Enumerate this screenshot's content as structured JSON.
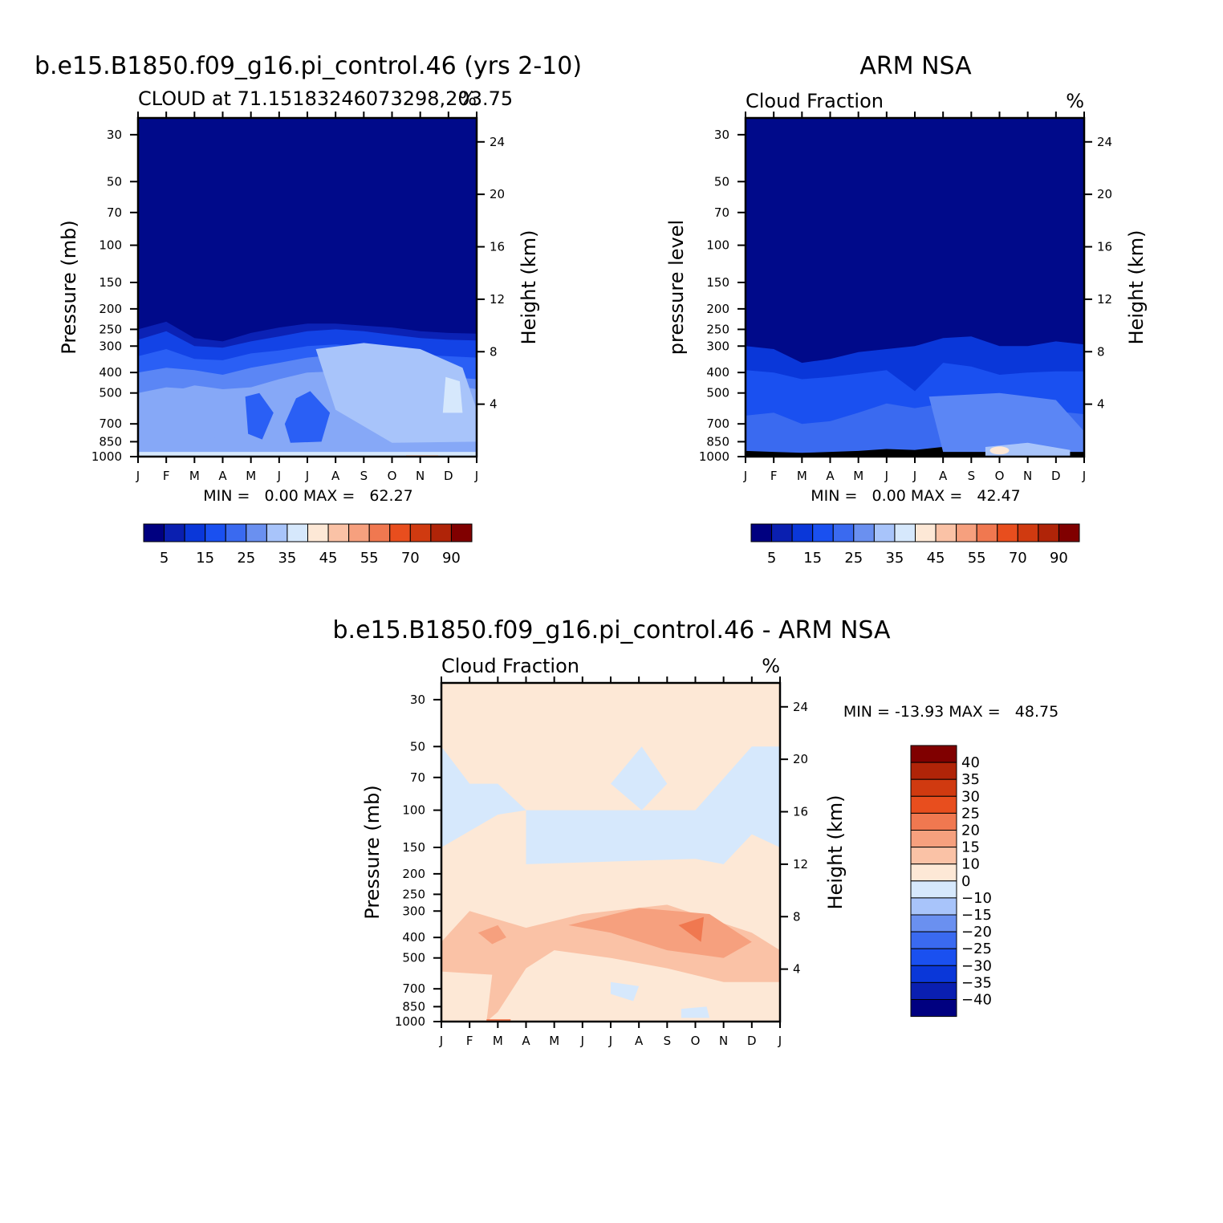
{
  "chart_data": [
    {
      "type": "heatmap",
      "id": "model",
      "title": "b.e15.B1850.f09_g16.pi_control.46 (yrs 2-10)",
      "subtitle_left": "CLOUD at 71.15183246073298,203.75",
      "subtitle_right": "%",
      "ylabel": "Pressure (mb)",
      "ylabel_right": "Height (km)",
      "x_ticks": [
        "J",
        "F",
        "M",
        "A",
        "M",
        "J",
        "J",
        "A",
        "S",
        "O",
        "N",
        "D",
        "J"
      ],
      "y_ticks": [
        30,
        50,
        70,
        100,
        150,
        200,
        250,
        300,
        400,
        500,
        700,
        850,
        1000
      ],
      "height_ticks": [
        24,
        20,
        16,
        12,
        8,
        4
      ],
      "ylim": [
        1000,
        25
      ],
      "stats": "MIN =   0.00 MAX =   62.27",
      "colorbar_labels": [
        "5",
        "15",
        "25",
        "35",
        "45",
        "55",
        "70",
        "90"
      ],
      "bands": [
        {
          "level": 0,
          "values": [
            250,
            230,
            275,
            285,
            260,
            245,
            235,
            235,
            240,
            245,
            255,
            260,
            262
          ]
        },
        {
          "level": 1,
          "values": [
            280,
            255,
            300,
            305,
            285,
            270,
            255,
            250,
            255,
            265,
            275,
            280,
            282
          ]
        },
        {
          "level": 2,
          "values": [
            335,
            310,
            345,
            350,
            325,
            315,
            300,
            295,
            300,
            315,
            330,
            335,
            340
          ]
        },
        {
          "level": 3,
          "values": [
            400,
            380,
            390,
            410,
            380,
            360,
            340,
            330,
            345,
            360,
            390,
            420,
            430
          ]
        },
        {
          "level": 4,
          "values": [
            560,
            500,
            460,
            480,
            470,
            430,
            400,
            395,
            400,
            410,
            420,
            455,
            480
          ]
        }
      ]
    },
    {
      "type": "heatmap",
      "id": "obs",
      "title": "ARM NSA",
      "subtitle_left": "Cloud Fraction",
      "subtitle_right": "%",
      "ylabel": "pressure level",
      "ylabel_right": "Height (km)",
      "x_ticks": [
        "J",
        "F",
        "M",
        "A",
        "M",
        "J",
        "J",
        "A",
        "S",
        "O",
        "N",
        "D",
        "J"
      ],
      "y_ticks": [
        30,
        50,
        70,
        100,
        150,
        200,
        250,
        300,
        400,
        500,
        700,
        850,
        1000
      ],
      "height_ticks": [
        24,
        20,
        16,
        12,
        8,
        4
      ],
      "ylim": [
        1000,
        25
      ],
      "stats": "MIN =   0.00 MAX =   42.47",
      "colorbar_labels": [
        "5",
        "15",
        "25",
        "35",
        "45",
        "55",
        "70",
        "90"
      ],
      "bands": [
        {
          "level": 1,
          "values": [
            300,
            310,
            360,
            345,
            320,
            310,
            300,
            275,
            270,
            300,
            300,
            285,
            295
          ]
        },
        {
          "level": 2,
          "values": [
            390,
            400,
            430,
            420,
            405,
            390,
            490,
            360,
            375,
            410,
            400,
            395,
            395
          ]
        },
        {
          "level": 3,
          "values": [
            640,
            620,
            700,
            680,
            620,
            560,
            590,
            560,
            540,
            560,
            600,
            610,
            630
          ]
        },
        {
          "level": 4,
          "values": [
            940,
            950,
            960,
            950,
            940,
            920,
            930,
            900,
            880,
            850,
            880,
            900,
            940
          ]
        }
      ]
    },
    {
      "type": "heatmap",
      "id": "diff",
      "title": "b.e15.B1850.f09_g16.pi_control.46 - ARM NSA",
      "subtitle_left": "Cloud Fraction",
      "subtitle_right": "%",
      "ylabel": "Pressure (mb)",
      "ylabel_right": "Height (km)",
      "x_ticks": [
        "J",
        "F",
        "M",
        "A",
        "M",
        "J",
        "J",
        "A",
        "S",
        "O",
        "N",
        "D",
        "J"
      ],
      "y_ticks": [
        30,
        50,
        70,
        100,
        150,
        200,
        250,
        300,
        400,
        500,
        700,
        850,
        1000
      ],
      "height_ticks": [
        24,
        20,
        16,
        12,
        8,
        4
      ],
      "ylim": [
        1000,
        25
      ],
      "stats": "MIN = -13.93 MAX =   48.75",
      "colorbar_labels": [
        "40",
        "35",
        "30",
        "25",
        "20",
        "15",
        "10",
        "0",
        "-10",
        "-15",
        "-20",
        "-25",
        "-30",
        "-35",
        "-40"
      ]
    }
  ],
  "palette": {
    "seq": [
      "#000080",
      "#0a1fb0",
      "#0a37d9",
      "#1a50f0",
      "#3a6af0",
      "#6a90f0",
      "#a8c4fa",
      "#d6e8fc",
      "#fde8d6",
      "#fac2a6",
      "#f6a07e",
      "#f07850",
      "#e84e1e",
      "#d03a10",
      "#b02408",
      "#800000"
    ],
    "div": [
      "#000080",
      "#0a1fb0",
      "#0a37d9",
      "#1a50f0",
      "#3a6af0",
      "#6a90f0",
      "#a8c4fa",
      "#d6e8fc",
      "#fde8d6",
      "#fac2a6",
      "#f6a07e",
      "#f07850",
      "#e84e1e",
      "#d03a10",
      "#b02408",
      "#800000"
    ]
  }
}
